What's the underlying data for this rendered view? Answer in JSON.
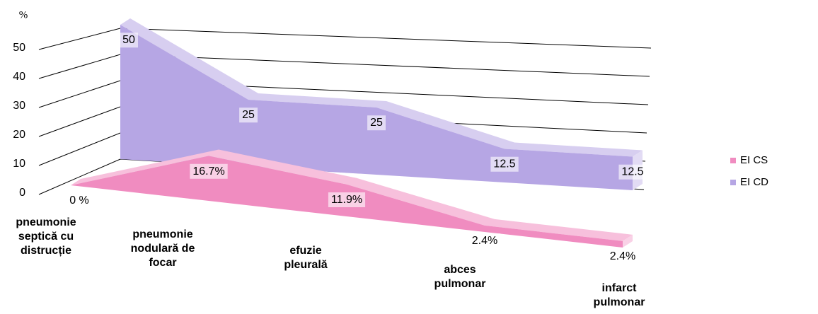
{
  "chart_data": {
    "type": "area3d",
    "y_label": "%",
    "categories": [
      "pneumonie septică cu distrucție",
      "pneumonie nodulară de focar",
      "efuzie pleurală",
      "abces pulmonar",
      "infarct pulmonar"
    ],
    "series": [
      {
        "name": "EI CS",
        "color": "#f08cc0",
        "values": [
          0,
          16.7,
          11.9,
          2.4,
          2.4
        ],
        "value_labels": [
          "0 %",
          "16.7%",
          "11.9%",
          "2.4%",
          "2.4%"
        ]
      },
      {
        "name": "EI CD",
        "color": "#b6a6e4",
        "values": [
          50,
          25,
          25,
          12.5,
          12.5
        ]
      }
    ],
    "ylim": [
      0,
      50
    ],
    "yticks": [
      0,
      10,
      20,
      30,
      40,
      50
    ],
    "grid": true,
    "legend": "right"
  }
}
